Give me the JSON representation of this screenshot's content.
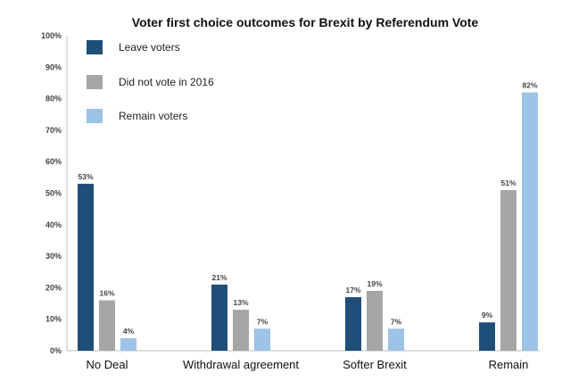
{
  "chart_data": {
    "type": "bar",
    "title": "Voter first choice outcomes for Brexit by Referendum Vote",
    "categories": [
      "No Deal",
      "Withdrawal agreement",
      "Softer Brexit",
      "Remain"
    ],
    "series": [
      {
        "name": "Leave voters",
        "color": "#1f4e79",
        "values": [
          53,
          21,
          17,
          9
        ],
        "labels": [
          "53%",
          "21%",
          "17%",
          "9%"
        ]
      },
      {
        "name": "Did not vote in 2016",
        "color": "#a6a6a6",
        "values": [
          16,
          13,
          19,
          51
        ],
        "labels": [
          "16%",
          "13%",
          "19%",
          "51%"
        ]
      },
      {
        "name": "Remain voters",
        "color": "#9dc3e6",
        "values": [
          4,
          7,
          7,
          82
        ],
        "labels": [
          "4%",
          "7%",
          "7%",
          "82%"
        ]
      }
    ],
    "ylim": [
      0,
      100
    ],
    "yticks": [
      "0%",
      "10%",
      "20%",
      "30%",
      "40%",
      "50%",
      "60%",
      "70%",
      "80%",
      "90%",
      "100%"
    ],
    "legend_position": "top-left",
    "grid": false
  }
}
